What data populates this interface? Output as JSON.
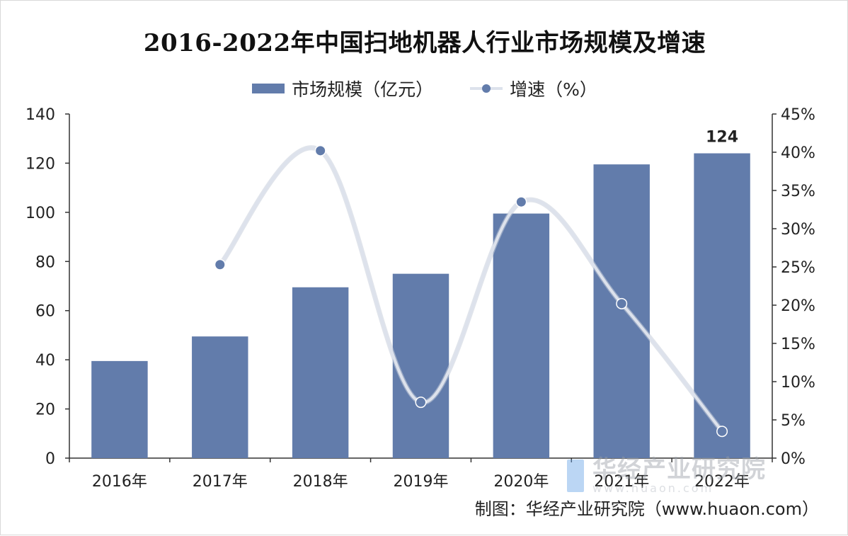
{
  "chart_data": {
    "type": "bar",
    "title": "2016-2022年中国扫地机器人行业市场规模及增速",
    "categories": [
      "2016年",
      "2017年",
      "2018年",
      "2019年",
      "2020年",
      "2021年",
      "2022年"
    ],
    "series": [
      {
        "name": "市场规模（亿元）",
        "type": "bar",
        "axis": "left",
        "values": [
          39.5,
          49.5,
          69.5,
          75,
          99.5,
          119.5,
          124
        ]
      },
      {
        "name": "增速（%）",
        "type": "line",
        "axis": "right",
        "values": [
          null,
          25.3,
          40.2,
          7.3,
          33.5,
          20.2,
          3.5
        ]
      }
    ],
    "data_labels": [
      {
        "series": 0,
        "index": 6,
        "text": "124"
      }
    ],
    "left_axis": {
      "min": 0,
      "max": 140,
      "step": 20,
      "ticks": [
        "0",
        "20",
        "40",
        "60",
        "80",
        "100",
        "120",
        "140"
      ]
    },
    "right_axis": {
      "min": 0,
      "max": 45,
      "step": 5,
      "ticks": [
        "0%",
        "5%",
        "10%",
        "15%",
        "20%",
        "25%",
        "30%",
        "35%",
        "40%",
        "45%"
      ]
    },
    "legend_position": "top-center",
    "grid": false,
    "colors": {
      "bar": "#627cab",
      "line": "#dde2ec",
      "marker": "#627cab",
      "axis": "#333333"
    }
  },
  "source": "制图：华经产业研究院（www.huaon.com）",
  "watermark": {
    "main": "华经产业研究院",
    "sub": "www.huaon.com"
  }
}
